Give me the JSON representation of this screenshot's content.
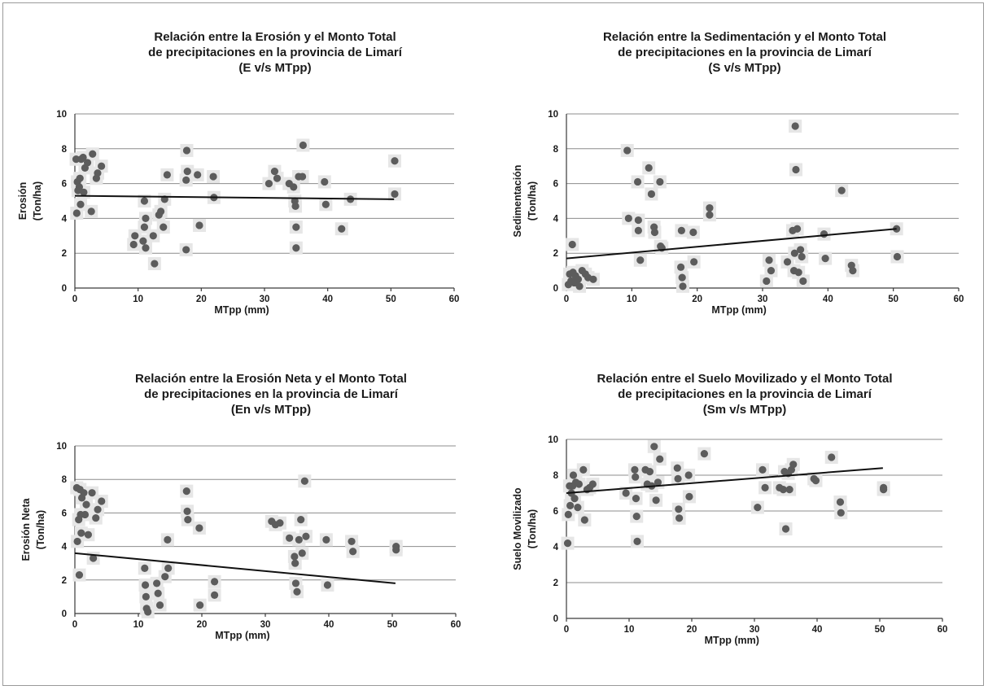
{
  "chart_data": [
    {
      "type": "scatter",
      "title": [
        "Relación entre la Erosión y el Monto Total",
        "de precipitaciones en la provincia de Limarí",
        "(E v/s MTpp)"
      ],
      "xlabel": "MTpp (mm)",
      "ylabel": [
        "Erosión",
        "(Ton/ha)"
      ],
      "xlim": [
        0,
        60
      ],
      "ylim": [
        0,
        10
      ],
      "xticks": [
        "0",
        "10",
        "20",
        "30",
        "40",
        "50",
        "60"
      ],
      "yticks": [
        "0",
        "2",
        "4",
        "6",
        "8",
        "10"
      ],
      "grid": true,
      "trendline": {
        "x": [
          0,
          50.5
        ],
        "y": [
          5.3,
          5.1
        ]
      },
      "points": [
        [
          0.2,
          7.4
        ],
        [
          0.4,
          6.1
        ],
        [
          0.5,
          5.6
        ],
        [
          0.3,
          4.3
        ],
        [
          0.8,
          6.3
        ],
        [
          0.7,
          5.8
        ],
        [
          1.0,
          7.4
        ],
        [
          0.9,
          4.8
        ],
        [
          1.3,
          7.5
        ],
        [
          1.6,
          6.9
        ],
        [
          1.4,
          5.5
        ],
        [
          2.0,
          7.2
        ],
        [
          2.8,
          7.7
        ],
        [
          2.6,
          4.4
        ],
        [
          3.4,
          6.3
        ],
        [
          3.6,
          6.6
        ],
        [
          4.2,
          7.0
        ],
        [
          9.5,
          3.0
        ],
        [
          9.3,
          2.5
        ],
        [
          11.0,
          5.0
        ],
        [
          11.2,
          4.0
        ],
        [
          11.0,
          3.5
        ],
        [
          10.8,
          2.7
        ],
        [
          11.2,
          2.3
        ],
        [
          12.4,
          3.0
        ],
        [
          12.6,
          1.4
        ],
        [
          13.3,
          4.2
        ],
        [
          13.6,
          4.4
        ],
        [
          14.0,
          3.5
        ],
        [
          14.6,
          6.5
        ],
        [
          14.2,
          5.1
        ],
        [
          17.7,
          7.9
        ],
        [
          17.8,
          6.7
        ],
        [
          17.6,
          6.2
        ],
        [
          17.6,
          2.2
        ],
        [
          19.4,
          6.5
        ],
        [
          19.7,
          3.6
        ],
        [
          21.9,
          6.4
        ],
        [
          22.0,
          5.2
        ],
        [
          30.7,
          6.0
        ],
        [
          31.6,
          6.7
        ],
        [
          32.0,
          6.3
        ],
        [
          33.9,
          6.0
        ],
        [
          34.6,
          5.8
        ],
        [
          34.8,
          5.0
        ],
        [
          34.9,
          4.7
        ],
        [
          35.0,
          3.5
        ],
        [
          35.0,
          2.3
        ],
        [
          35.4,
          6.4
        ],
        [
          36.0,
          6.4
        ],
        [
          36.1,
          8.2
        ],
        [
          39.5,
          6.1
        ],
        [
          39.7,
          4.8
        ],
        [
          42.2,
          3.4
        ],
        [
          43.6,
          5.1
        ],
        [
          50.6,
          7.3
        ],
        [
          50.6,
          5.4
        ]
      ]
    },
    {
      "type": "scatter",
      "title": [
        "Relación entre la Sedimentación y el Monto Total",
        "de precipitaciones en la provincia de Limarí",
        "(S v/s MTpp)"
      ],
      "xlabel": "MTpp (mm)",
      "ylabel": [
        "Sedimentación",
        "(Ton/ha)"
      ],
      "xlim": [
        0,
        60
      ],
      "ylim": [
        0,
        10
      ],
      "xticks": [
        "0",
        "10",
        "20",
        "30",
        "40",
        "50",
        "60"
      ],
      "yticks": [
        "0",
        "2",
        "4",
        "6",
        "8",
        "10"
      ],
      "grid": true,
      "trendline": {
        "x": [
          0,
          50.5
        ],
        "y": [
          1.7,
          3.4
        ]
      },
      "points": [
        [
          0.3,
          0.2
        ],
        [
          0.5,
          0.8
        ],
        [
          0.7,
          0.4
        ],
        [
          0.9,
          2.5
        ],
        [
          1.0,
          0.9
        ],
        [
          1.2,
          0.3
        ],
        [
          1.4,
          0.7
        ],
        [
          1.8,
          0.5
        ],
        [
          2.0,
          0.1
        ],
        [
          2.4,
          1.0
        ],
        [
          2.9,
          0.8
        ],
        [
          3.3,
          0.6
        ],
        [
          4.1,
          0.5
        ],
        [
          9.3,
          7.9
        ],
        [
          9.5,
          4.0
        ],
        [
          10.9,
          6.1
        ],
        [
          11.0,
          3.9
        ],
        [
          11.0,
          3.3
        ],
        [
          11.3,
          1.6
        ],
        [
          12.6,
          6.9
        ],
        [
          13.0,
          5.4
        ],
        [
          13.4,
          3.5
        ],
        [
          13.5,
          3.2
        ],
        [
          14.3,
          6.1
        ],
        [
          14.4,
          2.4
        ],
        [
          14.6,
          2.3
        ],
        [
          17.5,
          1.2
        ],
        [
          17.6,
          3.3
        ],
        [
          17.7,
          0.6
        ],
        [
          17.8,
          0.1
        ],
        [
          19.4,
          3.2
        ],
        [
          19.5,
          1.5
        ],
        [
          21.9,
          4.6
        ],
        [
          21.9,
          4.2
        ],
        [
          30.6,
          0.4
        ],
        [
          31.0,
          1.6
        ],
        [
          31.3,
          1.0
        ],
        [
          33.8,
          1.5
        ],
        [
          34.6,
          3.3
        ],
        [
          34.8,
          1.0
        ],
        [
          34.9,
          2.0
        ],
        [
          35.0,
          9.3
        ],
        [
          35.1,
          6.8
        ],
        [
          35.3,
          3.4
        ],
        [
          35.5,
          0.9
        ],
        [
          35.8,
          2.2
        ],
        [
          36.0,
          1.8
        ],
        [
          36.2,
          0.4
        ],
        [
          39.4,
          3.1
        ],
        [
          39.6,
          1.7
        ],
        [
          42.1,
          5.6
        ],
        [
          43.6,
          1.3
        ],
        [
          43.8,
          1.0
        ],
        [
          50.5,
          3.4
        ],
        [
          50.6,
          1.8
        ]
      ]
    },
    {
      "type": "scatter",
      "title": [
        "Relación entre la Erosión Neta y el Monto Total",
        "de precipitaciones en la provincia de Limarí",
        "(En v/s MTpp)"
      ],
      "xlabel": "MTpp (mm)",
      "ylabel": [
        "Erosión Neta",
        "(Ton/ha)"
      ],
      "xlim": [
        0,
        60
      ],
      "ylim": [
        0,
        10
      ],
      "xticks": [
        "0",
        "10",
        "20",
        "30",
        "40",
        "50",
        "60"
      ],
      "yticks": [
        "0",
        "2",
        "4",
        "6",
        "8",
        "10"
      ],
      "grid": true,
      "trendline": {
        "x": [
          0,
          50.5
        ],
        "y": [
          3.6,
          1.8
        ]
      },
      "points": [
        [
          0.3,
          7.5
        ],
        [
          0.4,
          4.3
        ],
        [
          0.6,
          5.6
        ],
        [
          0.7,
          2.3
        ],
        [
          0.8,
          7.4
        ],
        [
          0.9,
          5.9
        ],
        [
          1.0,
          4.8
        ],
        [
          1.1,
          6.9
        ],
        [
          1.4,
          7.2
        ],
        [
          1.6,
          5.9
        ],
        [
          1.8,
          6.5
        ],
        [
          2.1,
          4.7
        ],
        [
          2.7,
          7.2
        ],
        [
          2.9,
          3.3
        ],
        [
          3.3,
          5.7
        ],
        [
          3.6,
          6.2
        ],
        [
          4.2,
          6.7
        ],
        [
          11.0,
          2.7
        ],
        [
          11.1,
          1.7
        ],
        [
          11.2,
          1.0
        ],
        [
          11.3,
          0.3
        ],
        [
          11.5,
          0.1
        ],
        [
          12.9,
          1.8
        ],
        [
          13.1,
          1.2
        ],
        [
          13.4,
          0.5
        ],
        [
          14.2,
          2.2
        ],
        [
          14.6,
          4.4
        ],
        [
          14.7,
          2.7
        ],
        [
          17.6,
          7.3
        ],
        [
          17.7,
          6.1
        ],
        [
          17.8,
          5.6
        ],
        [
          19.6,
          5.1
        ],
        [
          19.7,
          0.5
        ],
        [
          22.0,
          1.9
        ],
        [
          22.0,
          1.1
        ],
        [
          31.0,
          5.5
        ],
        [
          31.6,
          5.3
        ],
        [
          32.3,
          5.4
        ],
        [
          33.8,
          4.5
        ],
        [
          34.6,
          3.4
        ],
        [
          34.7,
          3.0
        ],
        [
          34.8,
          1.8
        ],
        [
          35.0,
          1.3
        ],
        [
          35.3,
          4.4
        ],
        [
          35.6,
          5.6
        ],
        [
          35.8,
          3.6
        ],
        [
          36.2,
          7.9
        ],
        [
          36.4,
          4.6
        ],
        [
          39.6,
          4.4
        ],
        [
          39.8,
          1.7
        ],
        [
          43.6,
          4.3
        ],
        [
          43.8,
          3.7
        ],
        [
          50.6,
          4.0
        ],
        [
          50.6,
          3.8
        ]
      ]
    },
    {
      "type": "scatter",
      "title": [
        "Relación entre el Suelo Movilizado y el Monto Total",
        "de precipitaciones en la provincia de Limarí",
        "(Sm v/s MTpp)"
      ],
      "xlabel": "MTpp (mm)",
      "ylabel": [
        "Suelo Movilizado",
        "(Ton/ha)"
      ],
      "xlim": [
        0,
        60
      ],
      "ylim": [
        0,
        10
      ],
      "xticks": [
        "0",
        "10",
        "20",
        "30",
        "40",
        "50",
        "60"
      ],
      "yticks": [
        "0",
        "2",
        "4",
        "6",
        "8",
        "10"
      ],
      "grid": true,
      "trendline": {
        "x": [
          0,
          50.5
        ],
        "y": [
          7.0,
          8.4
        ]
      },
      "points": [
        [
          0.2,
          4.2
        ],
        [
          0.3,
          5.8
        ],
        [
          0.5,
          7.4
        ],
        [
          0.6,
          6.3
        ],
        [
          0.8,
          7.0
        ],
        [
          1.0,
          7.4
        ],
        [
          1.1,
          8.0
        ],
        [
          1.3,
          6.7
        ],
        [
          1.5,
          7.6
        ],
        [
          1.8,
          6.2
        ],
        [
          2.0,
          7.5
        ],
        [
          2.7,
          8.3
        ],
        [
          2.9,
          5.5
        ],
        [
          3.3,
          7.2
        ],
        [
          3.7,
          7.3
        ],
        [
          4.2,
          7.5
        ],
        [
          9.5,
          7.0
        ],
        [
          10.9,
          8.3
        ],
        [
          11.0,
          7.9
        ],
        [
          11.1,
          6.7
        ],
        [
          11.2,
          5.7
        ],
        [
          11.3,
          4.3
        ],
        [
          12.6,
          8.3
        ],
        [
          12.9,
          7.5
        ],
        [
          13.3,
          8.2
        ],
        [
          13.6,
          7.4
        ],
        [
          14.0,
          9.6
        ],
        [
          14.3,
          6.6
        ],
        [
          14.6,
          7.6
        ],
        [
          14.9,
          8.9
        ],
        [
          17.7,
          8.4
        ],
        [
          17.8,
          7.8
        ],
        [
          17.9,
          6.1
        ],
        [
          18.0,
          5.6
        ],
        [
          19.5,
          8.0
        ],
        [
          19.6,
          6.8
        ],
        [
          22.0,
          9.2
        ],
        [
          30.5,
          6.2
        ],
        [
          31.3,
          8.3
        ],
        [
          31.7,
          7.3
        ],
        [
          34.0,
          7.3
        ],
        [
          34.6,
          7.2
        ],
        [
          34.8,
          8.2
        ],
        [
          35.0,
          5.0
        ],
        [
          35.4,
          8.1
        ],
        [
          35.6,
          7.2
        ],
        [
          35.9,
          8.3
        ],
        [
          36.2,
          8.6
        ],
        [
          39.5,
          7.8
        ],
        [
          39.8,
          7.7
        ],
        [
          42.3,
          9.0
        ],
        [
          43.7,
          6.5
        ],
        [
          43.8,
          5.9
        ],
        [
          50.6,
          7.3
        ],
        [
          50.6,
          7.2
        ]
      ]
    }
  ]
}
